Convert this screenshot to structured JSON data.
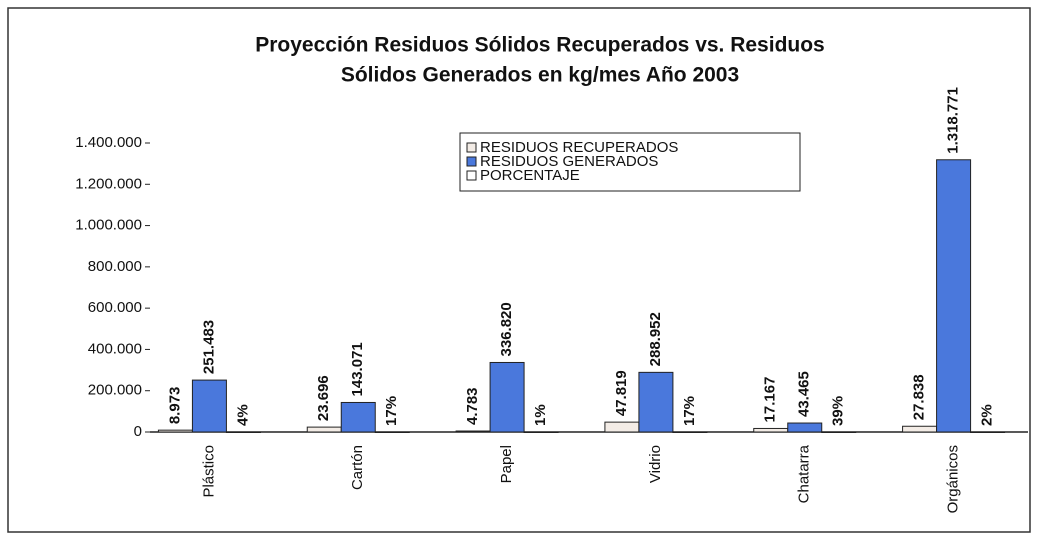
{
  "chart_data": {
    "type": "bar",
    "title": [
      "Proyección Residuos Sólidos Recuperados vs. Residuos",
      "Sólidos Generados en kg/mes Año 2003"
    ],
    "categories": [
      "Plástico",
      "Cartón",
      "Papel",
      "Vidrio",
      "Chatarra",
      "Orgánicos"
    ],
    "series": [
      {
        "name": "RESIDUOS RECUPERADOS",
        "color": "#f3ece6",
        "label_color": "#111111",
        "values": [
          8973,
          23696,
          4783,
          47819,
          17167,
          27838
        ],
        "value_labels": [
          "8.973",
          "23.696",
          "4.783",
          "47.819",
          "17.167",
          "27.838"
        ]
      },
      {
        "name": "RESIDUOS GENERADOS",
        "color": "#4a78dc",
        "label_color": "#1f3f9e",
        "values": [
          251483,
          143071,
          336820,
          288952,
          43465,
          1318771
        ],
        "value_labels": [
          "251.483",
          "143.071",
          "336.820",
          "288.952",
          "43.465",
          "1.318.771"
        ]
      },
      {
        "name": "PORCENTAJE",
        "color": "#ffffff",
        "label_color": "#111111",
        "values": [
          4,
          17,
          1,
          17,
          39,
          2
        ],
        "value_labels": [
          "4%",
          "17%",
          "1%",
          "17%",
          "39%",
          "2%"
        ]
      }
    ],
    "ylim": [
      0,
      1400000
    ],
    "yticks": [
      0,
      {
        "value": 200000,
        "label": "200.000"
      },
      {
        "value": 400000,
        "label": "400.000"
      },
      {
        "value": 600000,
        "label": "600.000"
      },
      {
        "value": 800000,
        "label": "800.000"
      },
      {
        "value": 1000000,
        "label": "1.000.000"
      },
      {
        "value": 1200000,
        "label": "1.200.000"
      },
      {
        "value": 1400000,
        "label": "1.400.000"
      }
    ],
    "grid": false
  }
}
